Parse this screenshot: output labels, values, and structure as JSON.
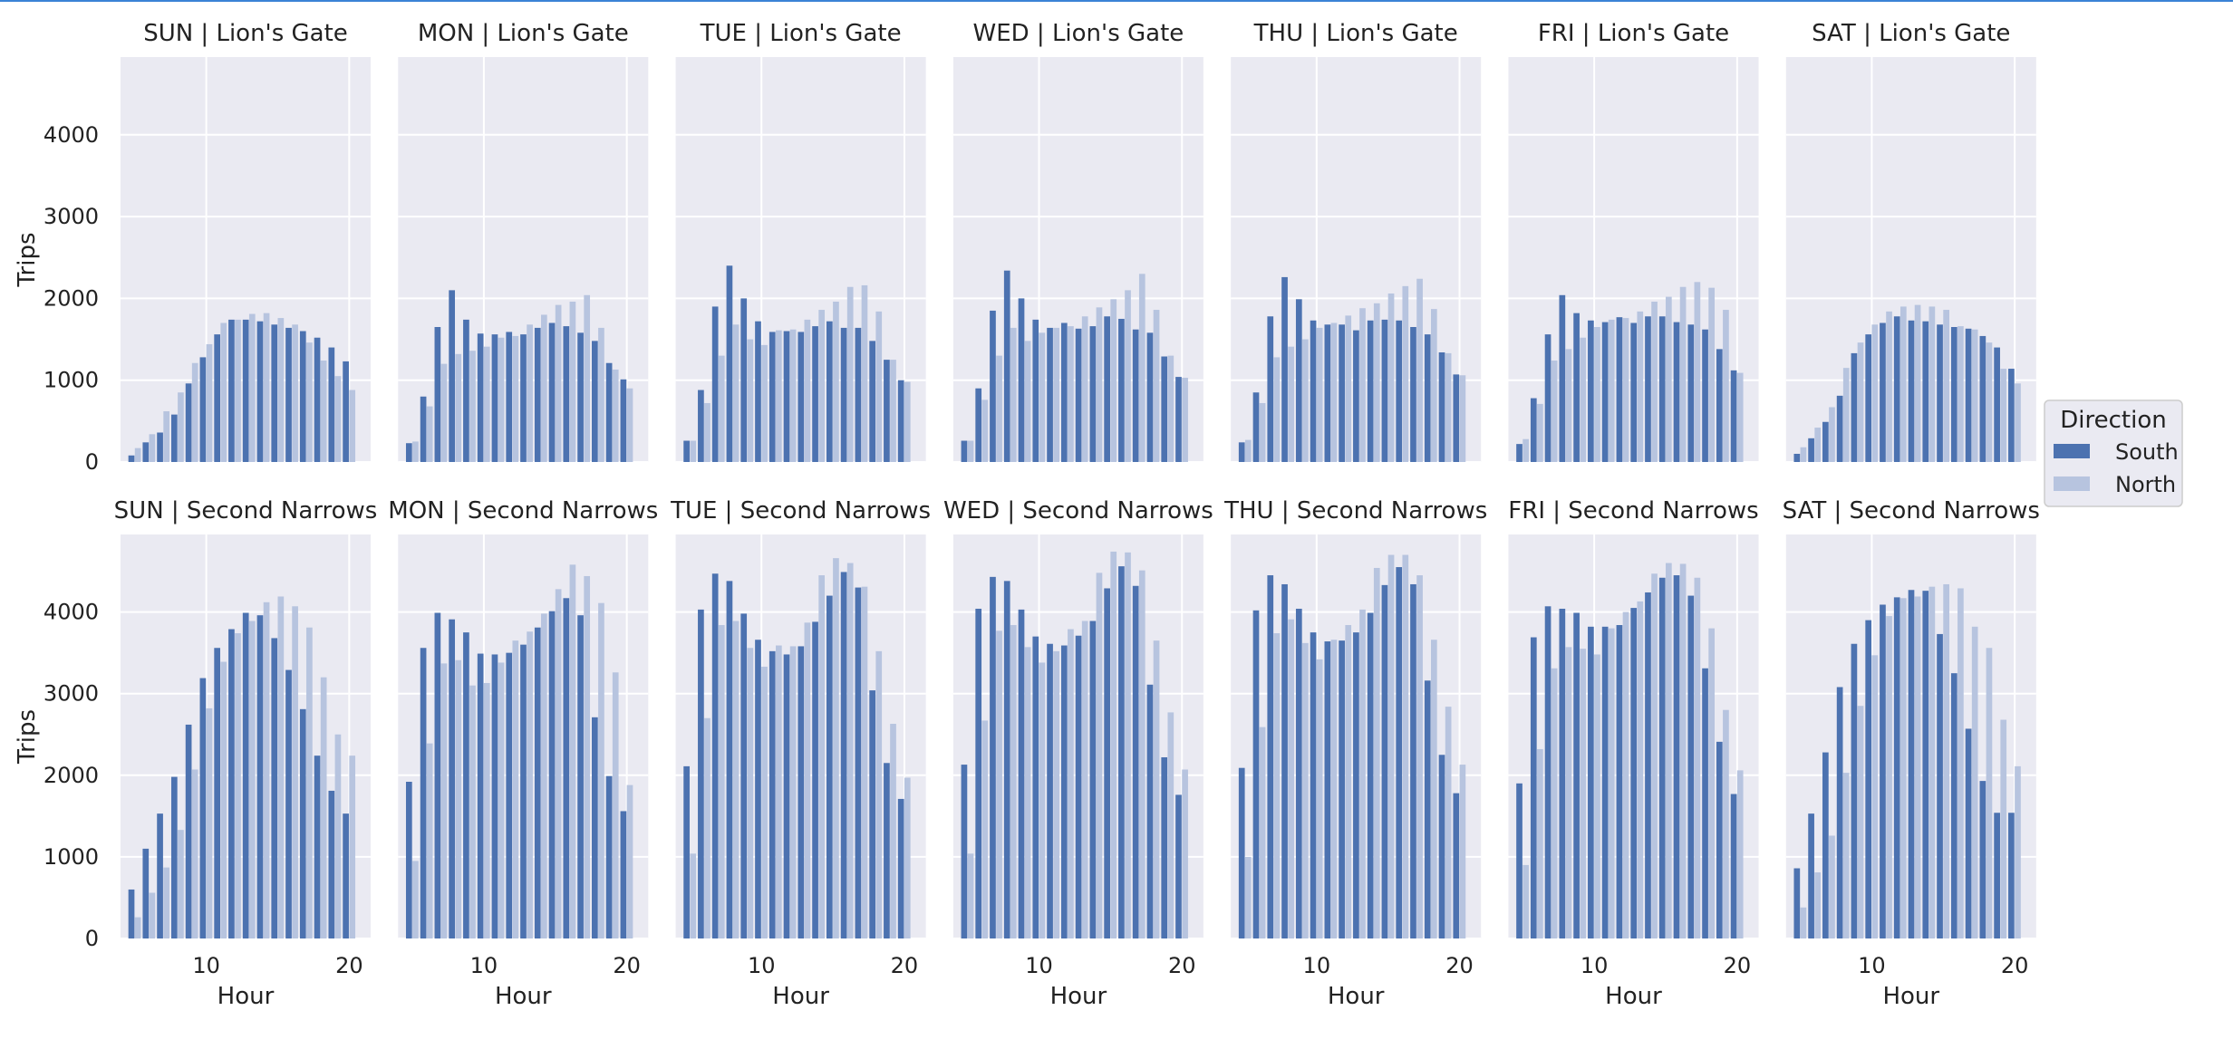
{
  "colors": {
    "panel_bg": "#eaeaf2",
    "grid": "#ffffff",
    "south": "#4c72b0",
    "north": "#b7c4df",
    "accent_rule": "#3b82d6"
  },
  "chart_data": {
    "type": "bar",
    "facet_rows": [
      "Lion's Gate",
      "Second Narrows"
    ],
    "facet_cols": [
      "SUN",
      "MON",
      "TUE",
      "WED",
      "THU",
      "FRI",
      "SAT"
    ],
    "x": [
      5,
      6,
      7,
      8,
      9,
      10,
      11,
      12,
      13,
      14,
      15,
      16,
      17,
      18,
      19,
      20
    ],
    "xlabel": "Hour",
    "ylabel": "Trips",
    "xticks": [
      10,
      20
    ],
    "xlim": [
      4.0,
      21.5
    ],
    "yticks": [
      0,
      1000,
      2000,
      3000,
      4000
    ],
    "ylim": [
      0,
      4950
    ],
    "grid": true,
    "legend": {
      "title": "Direction",
      "placement": "right",
      "entries": [
        "South",
        "North"
      ]
    },
    "panels": [
      {
        "title": "SUN | Lion's Gate",
        "bridge": "Lion's Gate",
        "day": "SUN",
        "series": [
          {
            "name": "South",
            "values": [
              80,
              240,
              360,
              580,
              960,
              1280,
              1560,
              1740,
              1740,
              1720,
              1680,
              1640,
              1600,
              1520,
              1400,
              1230
            ]
          },
          {
            "name": "North",
            "values": [
              170,
              340,
              620,
              850,
              1210,
              1440,
              1700,
              1740,
              1810,
              1820,
              1760,
              1680,
              1460,
              1240,
              1050,
              880
            ]
          }
        ]
      },
      {
        "title": "MON | Lion's Gate",
        "bridge": "Lion's Gate",
        "day": "MON",
        "series": [
          {
            "name": "South",
            "values": [
              230,
              800,
              1650,
              2100,
              1740,
              1570,
              1560,
              1590,
              1560,
              1640,
              1700,
              1660,
              1580,
              1480,
              1210,
              1010
            ]
          },
          {
            "name": "North",
            "values": [
              250,
              680,
              1200,
              1320,
              1360,
              1410,
              1520,
              1540,
              1680,
              1800,
              1920,
              1960,
              2040,
              1640,
              1130,
              900
            ]
          }
        ]
      },
      {
        "title": "TUE | Lion's Gate",
        "bridge": "Lion's Gate",
        "day": "TUE",
        "series": [
          {
            "name": "South",
            "values": [
              260,
              880,
              1900,
              2400,
              2000,
              1720,
              1590,
              1600,
              1590,
              1660,
              1720,
              1640,
              1640,
              1480,
              1250,
              1000
            ]
          },
          {
            "name": "North",
            "values": [
              260,
              720,
              1300,
              1680,
              1500,
              1430,
              1610,
              1620,
              1740,
              1860,
              1960,
              2140,
              2160,
              1840,
              1250,
              980
            ]
          }
        ]
      },
      {
        "title": "WED | Lion's Gate",
        "bridge": "Lion's Gate",
        "day": "WED",
        "series": [
          {
            "name": "South",
            "values": [
              260,
              900,
              1850,
              2340,
              2000,
              1740,
              1640,
              1700,
              1630,
              1660,
              1780,
              1750,
              1620,
              1580,
              1290,
              1040
            ]
          },
          {
            "name": "North",
            "values": [
              260,
              760,
              1300,
              1640,
              1480,
              1580,
              1640,
              1660,
              1780,
              1890,
              1990,
              2100,
              2300,
              1860,
              1300,
              1030
            ]
          }
        ]
      },
      {
        "title": "THU | Lion's Gate",
        "bridge": "Lion's Gate",
        "day": "THU",
        "series": [
          {
            "name": "South",
            "values": [
              240,
              850,
              1780,
              2260,
              1990,
              1730,
              1680,
              1680,
              1610,
              1730,
              1740,
              1730,
              1650,
              1560,
              1340,
              1070
            ]
          },
          {
            "name": "North",
            "values": [
              270,
              720,
              1280,
              1410,
              1500,
              1640,
              1700,
              1790,
              1880,
              1940,
              2060,
              2150,
              2240,
              1870,
              1330,
              1060
            ]
          }
        ]
      },
      {
        "title": "FRI | Lion's Gate",
        "bridge": "Lion's Gate",
        "day": "FRI",
        "series": [
          {
            "name": "South",
            "values": [
              220,
              780,
              1560,
              2040,
              1820,
              1730,
              1710,
              1770,
              1700,
              1780,
              1780,
              1710,
              1680,
              1620,
              1380,
              1120
            ]
          },
          {
            "name": "North",
            "values": [
              280,
              710,
              1240,
              1380,
              1520,
              1650,
              1740,
              1760,
              1840,
              1960,
              2020,
              2140,
              2200,
              2130,
              1860,
              1090
            ]
          }
        ]
      },
      {
        "title": "SAT | Lion's Gate",
        "bridge": "Lion's Gate",
        "day": "SAT",
        "series": [
          {
            "name": "South",
            "values": [
              100,
              290,
              490,
              810,
              1330,
              1560,
              1700,
              1780,
              1730,
              1720,
              1680,
              1650,
              1630,
              1540,
              1400,
              1140
            ]
          },
          {
            "name": "North",
            "values": [
              180,
              420,
              670,
              1150,
              1460,
              1680,
              1840,
              1900,
              1920,
              1900,
              1860,
              1660,
              1620,
              1460,
              1140,
              960
            ]
          }
        ]
      },
      {
        "title": "SUN | Second Narrows",
        "bridge": "Second Narrows",
        "day": "SUN",
        "series": [
          {
            "name": "South",
            "values": [
              600,
              1100,
              1530,
              1980,
              2620,
              3190,
              3560,
              3790,
              3990,
              3960,
              3680,
              3290,
              2810,
              2240,
              1810,
              1530
            ]
          },
          {
            "name": "North",
            "values": [
              260,
              560,
              870,
              1330,
              2070,
              2820,
              3390,
              3740,
              3890,
              4120,
              4190,
              4070,
              3810,
              3200,
              2500,
              2240
            ]
          }
        ]
      },
      {
        "title": "MON | Second Narrows",
        "bridge": "Second Narrows",
        "day": "MON",
        "series": [
          {
            "name": "South",
            "values": [
              1920,
              3560,
              3990,
              3910,
              3750,
              3490,
              3480,
              3500,
              3600,
              3810,
              4010,
              4170,
              3960,
              2710,
              1990,
              1560
            ]
          },
          {
            "name": "North",
            "values": [
              950,
              2390,
              3370,
              3410,
              3100,
              3130,
              3380,
              3650,
              3760,
              3980,
              4280,
              4580,
              4440,
              4110,
              3260,
              1880
            ]
          }
        ]
      },
      {
        "title": "TUE | Second Narrows",
        "bridge": "Second Narrows",
        "day": "TUE",
        "series": [
          {
            "name": "South",
            "values": [
              2110,
              4030,
              4470,
              4380,
              3980,
              3660,
              3520,
              3480,
              3580,
              3880,
              4200,
              4490,
              4300,
              3040,
              2150,
              1710
            ]
          },
          {
            "name": "North",
            "values": [
              1040,
              2700,
              3840,
              3890,
              3560,
              3330,
              3590,
              3580,
              3870,
              4450,
              4660,
              4600,
              4310,
              3520,
              2630,
              1970
            ]
          }
        ]
      },
      {
        "title": "WED | Second Narrows",
        "bridge": "Second Narrows",
        "day": "WED",
        "series": [
          {
            "name": "South",
            "values": [
              2130,
              4040,
              4430,
              4380,
              4030,
              3700,
              3610,
              3590,
              3710,
              3890,
              4290,
              4560,
              4320,
              3110,
              2220,
              1760
            ]
          },
          {
            "name": "North",
            "values": [
              1040,
              2670,
              3770,
              3840,
              3570,
              3380,
              3520,
              3790,
              3890,
              4480,
              4740,
              4730,
              4510,
              3650,
              2770,
              2070
            ]
          }
        ]
      },
      {
        "title": "THU | Second Narrows",
        "bridge": "Second Narrows",
        "day": "THU",
        "series": [
          {
            "name": "South",
            "values": [
              2090,
              4020,
              4450,
              4340,
              4040,
              3750,
              3640,
              3650,
              3750,
              3990,
              4330,
              4550,
              4340,
              3160,
              2250,
              1780
            ]
          },
          {
            "name": "North",
            "values": [
              1000,
              2590,
              3740,
              3910,
              3620,
              3420,
              3660,
              3840,
              4030,
              4540,
              4700,
              4700,
              4450,
              3660,
              2840,
              2130
            ]
          }
        ]
      },
      {
        "title": "FRI | Second Narrows",
        "bridge": "Second Narrows",
        "day": "FRI",
        "series": [
          {
            "name": "South",
            "values": [
              1900,
              3690,
              4070,
              4040,
              3990,
              3820,
              3820,
              3840,
              4050,
              4240,
              4420,
              4450,
              4200,
              3310,
              2410,
              1770
            ]
          },
          {
            "name": "North",
            "values": [
              900,
              2320,
              3310,
              3570,
              3550,
              3480,
              3800,
              4000,
              4130,
              4470,
              4600,
              4590,
              4420,
              3800,
              2800,
              2060
            ]
          }
        ]
      },
      {
        "title": "SAT | Second Narrows",
        "bridge": "Second Narrows",
        "day": "SAT",
        "series": [
          {
            "name": "South",
            "values": [
              860,
              1530,
              2280,
              3080,
              3610,
              3900,
              4090,
              4180,
              4270,
              4260,
              3730,
              3250,
              2570,
              1930,
              1540,
              1540
            ]
          },
          {
            "name": "North",
            "values": [
              380,
              810,
              1260,
              2030,
              2850,
              3470,
              3950,
              4170,
              4190,
              4310,
              4340,
              4290,
              3820,
              3560,
              2680,
              2110
            ]
          }
        ]
      }
    ]
  }
}
